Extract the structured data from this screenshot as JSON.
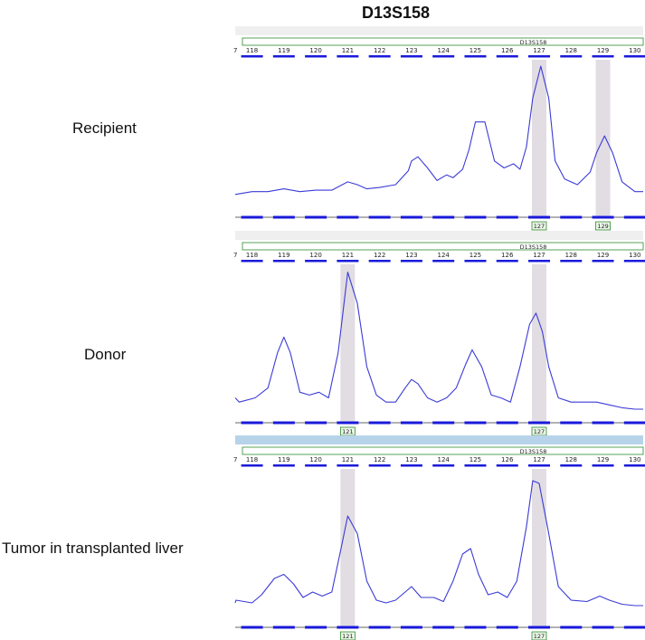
{
  "title": "D13S158",
  "chart_data": {
    "type": "line",
    "title": "D13S158",
    "marker_name": "D13S158",
    "x_ticks": [
      118,
      119,
      120,
      121,
      122,
      123,
      124,
      125,
      126,
      127,
      128,
      129,
      130
    ],
    "xlim": [
      117,
      130.5
    ],
    "series": [
      {
        "name": "Recipient",
        "x": [
          117,
          118,
          118.5,
          119,
          119.5,
          120,
          120.5,
          121,
          121.3,
          121.6,
          122,
          122.5,
          122.9,
          123,
          123.2,
          123.5,
          123.8,
          124.1,
          124.3,
          124.6,
          124.8,
          125,
          125.3,
          125.6,
          125.9,
          126.2,
          126.4,
          126.6,
          126.8,
          127.05,
          127.3,
          127.5,
          127.8,
          128.2,
          128.6,
          128.8,
          129.05,
          129.3,
          129.6,
          130,
          130.5
        ],
        "y": [
          0.06,
          0.08,
          0.08,
          0.1,
          0.08,
          0.09,
          0.09,
          0.15,
          0.13,
          0.1,
          0.11,
          0.13,
          0.23,
          0.3,
          0.33,
          0.25,
          0.16,
          0.2,
          0.18,
          0.24,
          0.38,
          0.58,
          0.58,
          0.3,
          0.25,
          0.28,
          0.24,
          0.4,
          0.75,
          0.98,
          0.75,
          0.3,
          0.17,
          0.13,
          0.22,
          0.36,
          0.48,
          0.36,
          0.15,
          0.08,
          0.08
        ],
        "peaks": [
          127,
          129
        ]
      },
      {
        "name": "Donor",
        "x": [
          117,
          117.6,
          118.1,
          118.5,
          118.8,
          119,
          119.2,
          119.5,
          119.8,
          120.1,
          120.4,
          120.7,
          121,
          121.3,
          121.6,
          121.9,
          122.2,
          122.5,
          122.8,
          123,
          123.2,
          123.5,
          123.8,
          124.1,
          124.4,
          124.7,
          124.9,
          125.2,
          125.5,
          125.8,
          126.1,
          126.4,
          126.7,
          126.9,
          127.1,
          127.3,
          127.6,
          128,
          128.5,
          128.8,
          129.2,
          129.6,
          130,
          130.5
        ],
        "y": [
          0.08,
          0.05,
          0.08,
          0.15,
          0.4,
          0.51,
          0.4,
          0.12,
          0.1,
          0.12,
          0.08,
          0.4,
          0.97,
          0.75,
          0.3,
          0.1,
          0.05,
          0.05,
          0.15,
          0.21,
          0.18,
          0.08,
          0.05,
          0.08,
          0.15,
          0.32,
          0.42,
          0.3,
          0.1,
          0.08,
          0.05,
          0.3,
          0.6,
          0.68,
          0.55,
          0.3,
          0.08,
          0.05,
          0.05,
          0.05,
          0.03,
          0.01,
          0.0,
          0.0
        ],
        "peaks": [
          121,
          127
        ]
      },
      {
        "name": "Tumor in transplanted liver",
        "x": [
          117,
          117.5,
          118,
          118.3,
          118.7,
          119,
          119.3,
          119.6,
          119.9,
          120.2,
          120.5,
          120.8,
          121,
          121.3,
          121.6,
          121.9,
          122.2,
          122.5,
          122.8,
          123,
          123.3,
          123.7,
          124,
          124.3,
          124.6,
          124.85,
          125.1,
          125.4,
          125.7,
          126,
          126.3,
          126.6,
          126.8,
          127,
          127.3,
          127.6,
          128,
          128.5,
          128.9,
          129.2,
          129.6,
          130,
          130.5
        ],
        "y": [
          0.04,
          0.06,
          0.04,
          0.1,
          0.22,
          0.25,
          0.18,
          0.08,
          0.12,
          0.09,
          0.12,
          0.45,
          0.68,
          0.55,
          0.2,
          0.06,
          0.04,
          0.06,
          0.12,
          0.16,
          0.08,
          0.08,
          0.05,
          0.2,
          0.4,
          0.44,
          0.25,
          0.1,
          0.12,
          0.08,
          0.2,
          0.6,
          0.94,
          0.92,
          0.55,
          0.16,
          0.06,
          0.05,
          0.09,
          0.06,
          0.03,
          0.02,
          0.02
        ],
        "peaks": [
          121,
          127
        ]
      }
    ]
  }
}
